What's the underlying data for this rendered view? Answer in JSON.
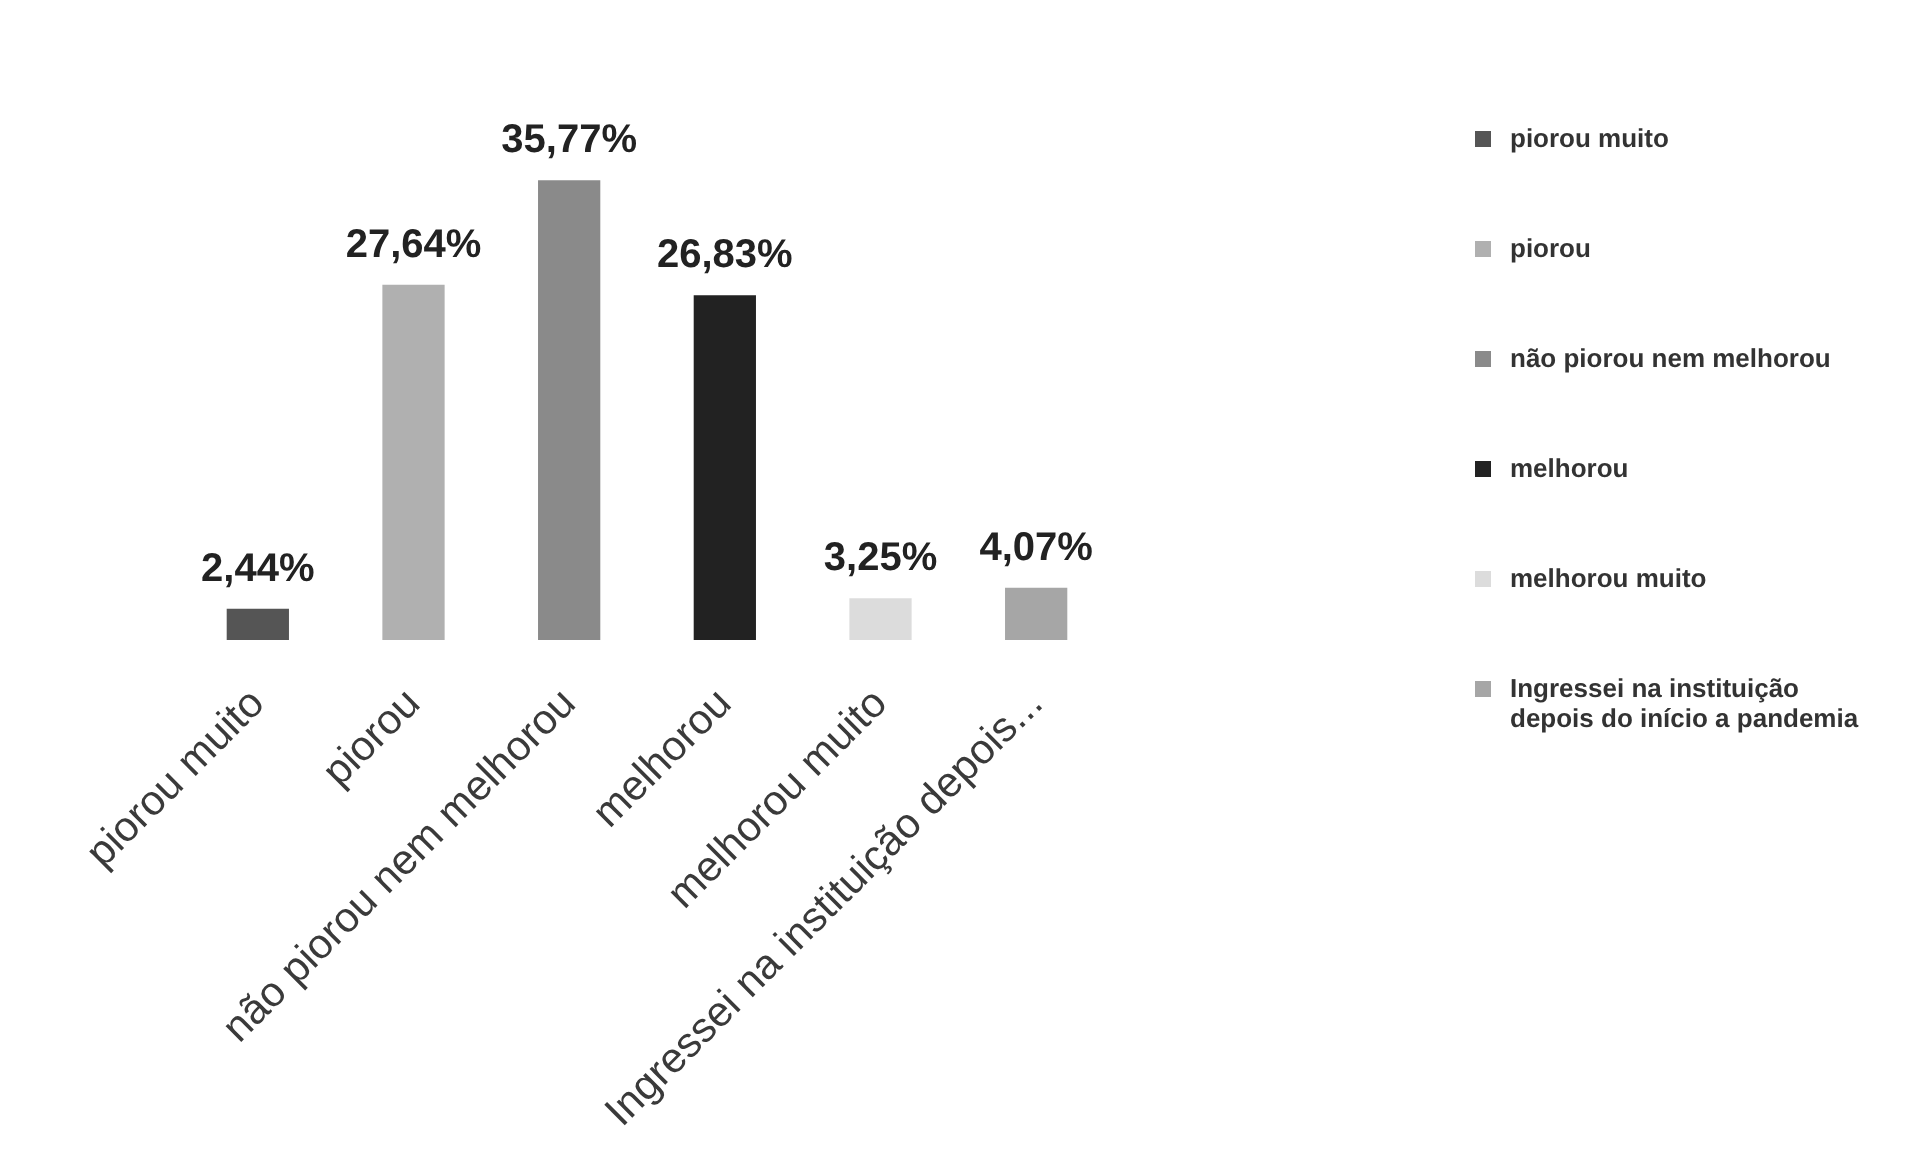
{
  "chart_data": {
    "type": "bar",
    "categories": [
      "piorou muito",
      "piorou",
      "não piorou nem melhorou",
      "melhorou",
      "melhorou muito",
      "Ingressei na instituição depois..."
    ],
    "series": [
      {
        "name": "piorou muito",
        "color": "#555555",
        "values": [
          2.44,
          null,
          null,
          null,
          null,
          null
        ],
        "value_labels": [
          "2,44%",
          null,
          null,
          null,
          null,
          null
        ]
      },
      {
        "name": "piorou",
        "color": "#b0b0b0",
        "values": [
          null,
          27.64,
          null,
          null,
          null,
          null
        ],
        "value_labels": [
          null,
          "27,64%",
          null,
          null,
          null,
          null
        ]
      },
      {
        "name": "não piorou nem melhorou",
        "color": "#8a8a8a",
        "values": [
          null,
          null,
          35.77,
          null,
          null,
          null
        ],
        "value_labels": [
          null,
          null,
          "35,77%",
          null,
          null,
          null
        ]
      },
      {
        "name": "melhorou",
        "color": "#222222",
        "values": [
          null,
          null,
          null,
          26.83,
          null,
          null
        ],
        "value_labels": [
          null,
          null,
          null,
          "26,83%",
          null,
          null
        ]
      },
      {
        "name": "melhorou muito",
        "color": "#dcdcdc",
        "values": [
          null,
          null,
          null,
          null,
          3.25,
          null
        ],
        "value_labels": [
          null,
          null,
          null,
          null,
          "3,25%",
          null
        ]
      },
      {
        "name": "Ingressei na instituição depois do início a pandemia",
        "color": "#a6a6a6",
        "values": [
          null,
          null,
          null,
          null,
          null,
          4.07
        ],
        "value_labels": [
          null,
          null,
          null,
          null,
          null,
          "4,07%"
        ]
      }
    ],
    "legend": "right",
    "tick_labels": "x"
  }
}
